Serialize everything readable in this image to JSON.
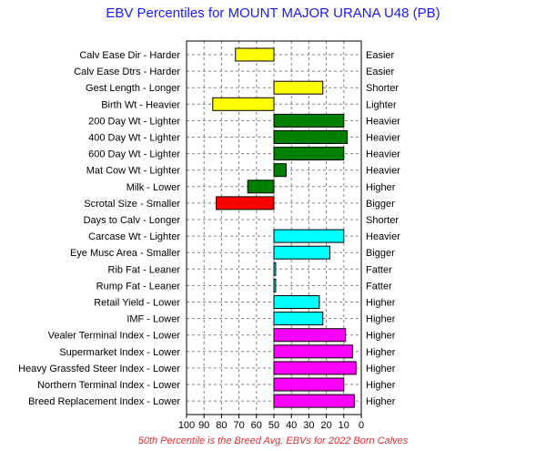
{
  "chart_data": {
    "type": "bar",
    "title": "EBV Percentiles for MOUNT MAJOR URANA U48 (PB)",
    "note": "50th Percentile is the Breed Avg. EBVs for 2022 Born Calves",
    "xlim": [
      100,
      0
    ],
    "xticks": [
      "100",
      "90",
      "80",
      "70",
      "60",
      "50",
      "40",
      "30",
      "20",
      "10",
      "0"
    ],
    "grid": true,
    "baseline": 50,
    "rows": [
      {
        "left": "Calv Ease Dir - Harder",
        "right": "Easier",
        "value": 72,
        "color": "#ffff00"
      },
      {
        "left": "Calv Ease Dtrs - Harder",
        "right": "Easier",
        "value": null,
        "color": ""
      },
      {
        "left": "Gest Length - Longer",
        "right": "Shorter",
        "value": 22,
        "color": "#ffff00"
      },
      {
        "left": "Birth Wt - Heavier",
        "right": "Lighter",
        "value": 85,
        "color": "#ffff00"
      },
      {
        "left": "200 Day Wt - Lighter",
        "right": "Heavier",
        "value": 10,
        "color": "#008000"
      },
      {
        "left": "400 Day Wt - Lighter",
        "right": "Heavier",
        "value": 8,
        "color": "#008000"
      },
      {
        "left": "600 Day Wt - Lighter",
        "right": "Heavier",
        "value": 10,
        "color": "#008000"
      },
      {
        "left": "Mat Cow Wt - Lighter",
        "right": "Heavier",
        "value": 43,
        "color": "#008000"
      },
      {
        "left": "Milk - Lower",
        "right": "Higher",
        "value": 65,
        "color": "#008000"
      },
      {
        "left": "Scrotal Size - Smaller",
        "right": "Bigger",
        "value": 83,
        "color": "#ff0000"
      },
      {
        "left": "Days to Calv - Longer",
        "right": "Shorter",
        "value": null,
        "color": ""
      },
      {
        "left": "Carcase Wt - Lighter",
        "right": "Heavier",
        "value": 10,
        "color": "#00ffff"
      },
      {
        "left": "Eye Musc Area - Smaller",
        "right": "Bigger",
        "value": 18,
        "color": "#00ffff"
      },
      {
        "left": "Rib Fat - Leaner",
        "right": "Fatter",
        "value": 49,
        "color": "#00ffff"
      },
      {
        "left": "Rump Fat - Leaner",
        "right": "Fatter",
        "value": 49,
        "color": "#00ffff"
      },
      {
        "left": "Retail Yield - Lower",
        "right": "Higher",
        "value": 24,
        "color": "#00ffff"
      },
      {
        "left": "IMF - Lower",
        "right": "Higher",
        "value": 22,
        "color": "#00ffff"
      },
      {
        "left": "Vealer Terminal Index - Lower",
        "right": "Higher",
        "value": 9,
        "color": "#ff00ff"
      },
      {
        "left": "Supermarket Index - Lower",
        "right": "Higher",
        "value": 5,
        "color": "#ff00ff"
      },
      {
        "left": "Heavy Grassfed Steer Index - Lower",
        "right": "Higher",
        "value": 3,
        "color": "#ff00ff"
      },
      {
        "left": "Northern Terminal Index - Lower",
        "right": "Higher",
        "value": 10,
        "color": "#ff00ff"
      },
      {
        "left": "Breed Replacement Index - Lower",
        "right": "Higher",
        "value": 4,
        "color": "#ff00ff"
      }
    ]
  }
}
